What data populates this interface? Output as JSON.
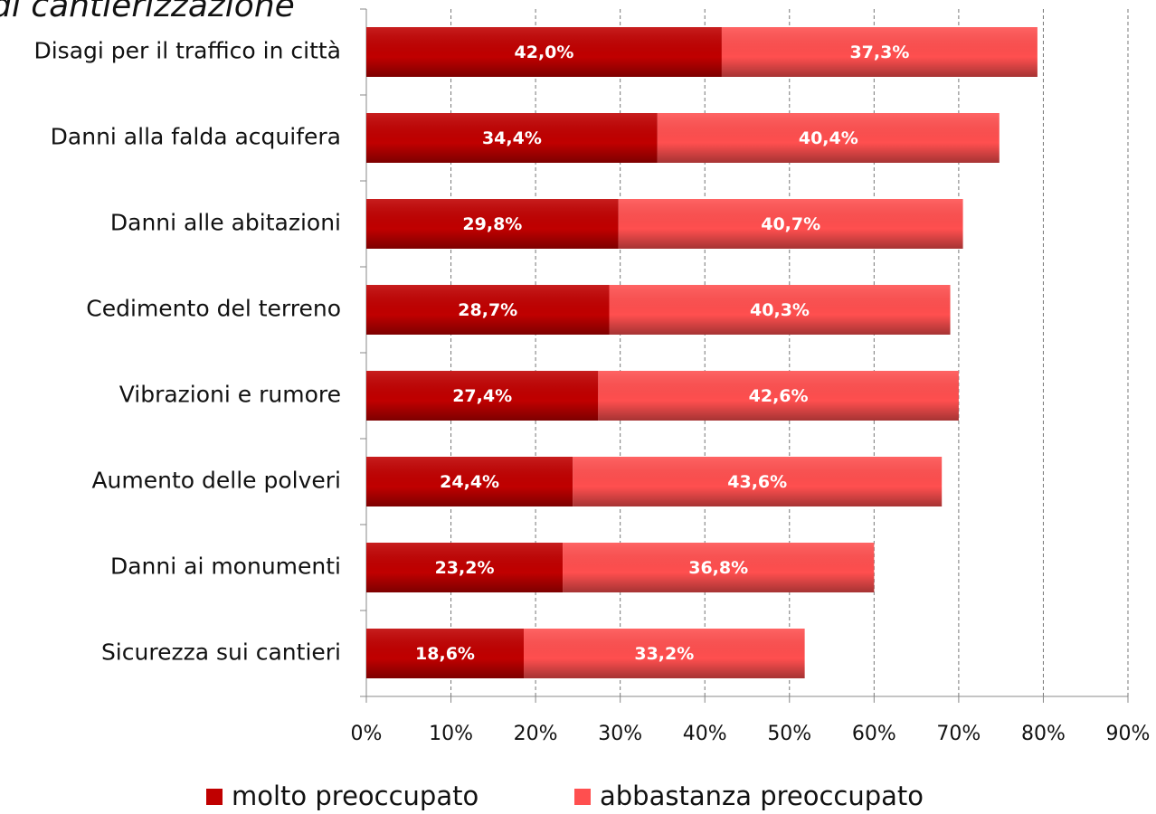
{
  "chart_data": {
    "type": "stacked_barh",
    "title": "di cantierizzazione",
    "categories": [
      "Disagi per il traffico in città",
      "Danni alla falda acquifera",
      "Danni alle abitazioni",
      "Cedimento del terreno",
      "Vibrazioni e rumore",
      "Aumento delle polveri",
      "Danni ai monumenti",
      "Sicurezza sui cantieri"
    ],
    "series": [
      {
        "name": "molto preoccupato",
        "color": "#c00000",
        "values": [
          42.0,
          34.4,
          29.8,
          28.7,
          27.4,
          24.4,
          23.2,
          18.6
        ],
        "value_labels": [
          "42,0%",
          "34,4%",
          "29,8%",
          "28,7%",
          "27,4%",
          "24,4%",
          "23,2%",
          "18,6%"
        ]
      },
      {
        "name": "abbastanza preoccupato",
        "color": "#ff4f4f",
        "values": [
          37.3,
          40.4,
          40.7,
          40.3,
          42.6,
          43.6,
          36.8,
          33.2
        ],
        "value_labels": [
          "37,3%",
          "40,4%",
          "40,7%",
          "40,3%",
          "42,6%",
          "43,6%",
          "36,8%",
          "33,2%"
        ]
      }
    ],
    "xlim": [
      0,
      90
    ],
    "xticks": [
      {
        "value": 0,
        "label": "0%"
      },
      {
        "value": 10,
        "label": "10%"
      },
      {
        "value": 20,
        "label": "20%"
      },
      {
        "value": 30,
        "label": "30%"
      },
      {
        "value": 40,
        "label": "40%"
      },
      {
        "value": 50,
        "label": "50%"
      },
      {
        "value": 60,
        "label": "60%"
      },
      {
        "value": 70,
        "label": "70%"
      },
      {
        "value": 80,
        "label": "80%"
      },
      {
        "value": 90,
        "label": "90%"
      }
    ],
    "grid": true,
    "legend": "bottom"
  }
}
